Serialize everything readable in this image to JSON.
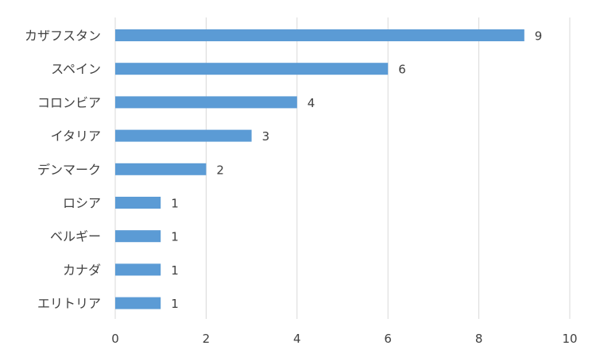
{
  "chart_data": {
    "type": "bar",
    "orientation": "horizontal",
    "categories": [
      "カザフスタン",
      "スペイン",
      "コロンビア",
      "イタリア",
      "デンマーク",
      "ロシア",
      "ベルギー",
      "カナダ",
      "エリトリア"
    ],
    "values": [
      9,
      6,
      4,
      3,
      2,
      1,
      1,
      1,
      1
    ],
    "data_labels": [
      "9",
      "6",
      "4",
      "3",
      "2",
      "1",
      "1",
      "1",
      "1"
    ],
    "xlim": [
      0,
      10
    ],
    "x_ticks": [
      0,
      2,
      4,
      6,
      8,
      10
    ],
    "x_tick_labels": [
      "0",
      "2",
      "4",
      "6",
      "8",
      "10"
    ],
    "grid": true,
    "legend": "none",
    "colors": {
      "bar": "#5b9bd5",
      "grid": "#d9d9d9",
      "text": "#404040"
    }
  }
}
